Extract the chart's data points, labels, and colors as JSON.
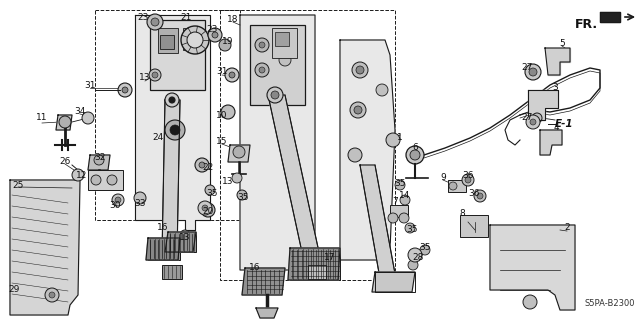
{
  "background_color": "#ffffff",
  "diagram_code": "S5PA-B2300",
  "fr_label": "FR.",
  "e1_label": "E-1",
  "figsize": [
    6.4,
    3.19
  ],
  "dpi": 100,
  "line_color": "#1a1a1a",
  "text_color": "#111111",
  "gray_fill": "#c8c8c8",
  "dark_gray": "#888888",
  "light_gray": "#e8e8e8"
}
